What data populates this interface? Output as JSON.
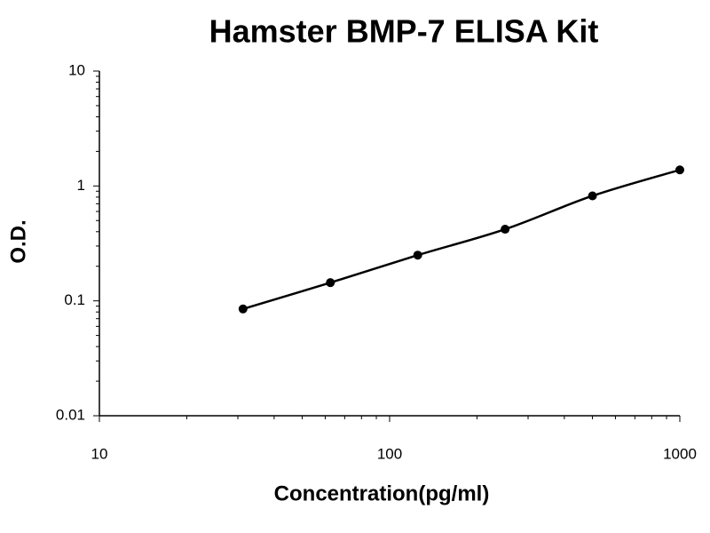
{
  "chart_data": {
    "type": "scatter",
    "title": "Hamster BMP-7 ELISA Kit",
    "xlabel": "Concentration(pg/ml)",
    "ylabel": "O.D.",
    "x": [
      31.25,
      62.5,
      125,
      250,
      500,
      1000
    ],
    "series": [
      {
        "color": "#000000",
        "values": [
          0.085,
          0.144,
          0.25,
          0.42,
          0.82,
          1.38
        ]
      }
    ],
    "xlim": [
      10,
      1000
    ],
    "ylim": [
      0.01,
      10
    ],
    "xticks": [
      10,
      100,
      1000
    ],
    "yticks": [
      0.01,
      0.1,
      1,
      10
    ],
    "xscale": "log",
    "yscale": "log",
    "grid": false,
    "fit_line": true
  }
}
